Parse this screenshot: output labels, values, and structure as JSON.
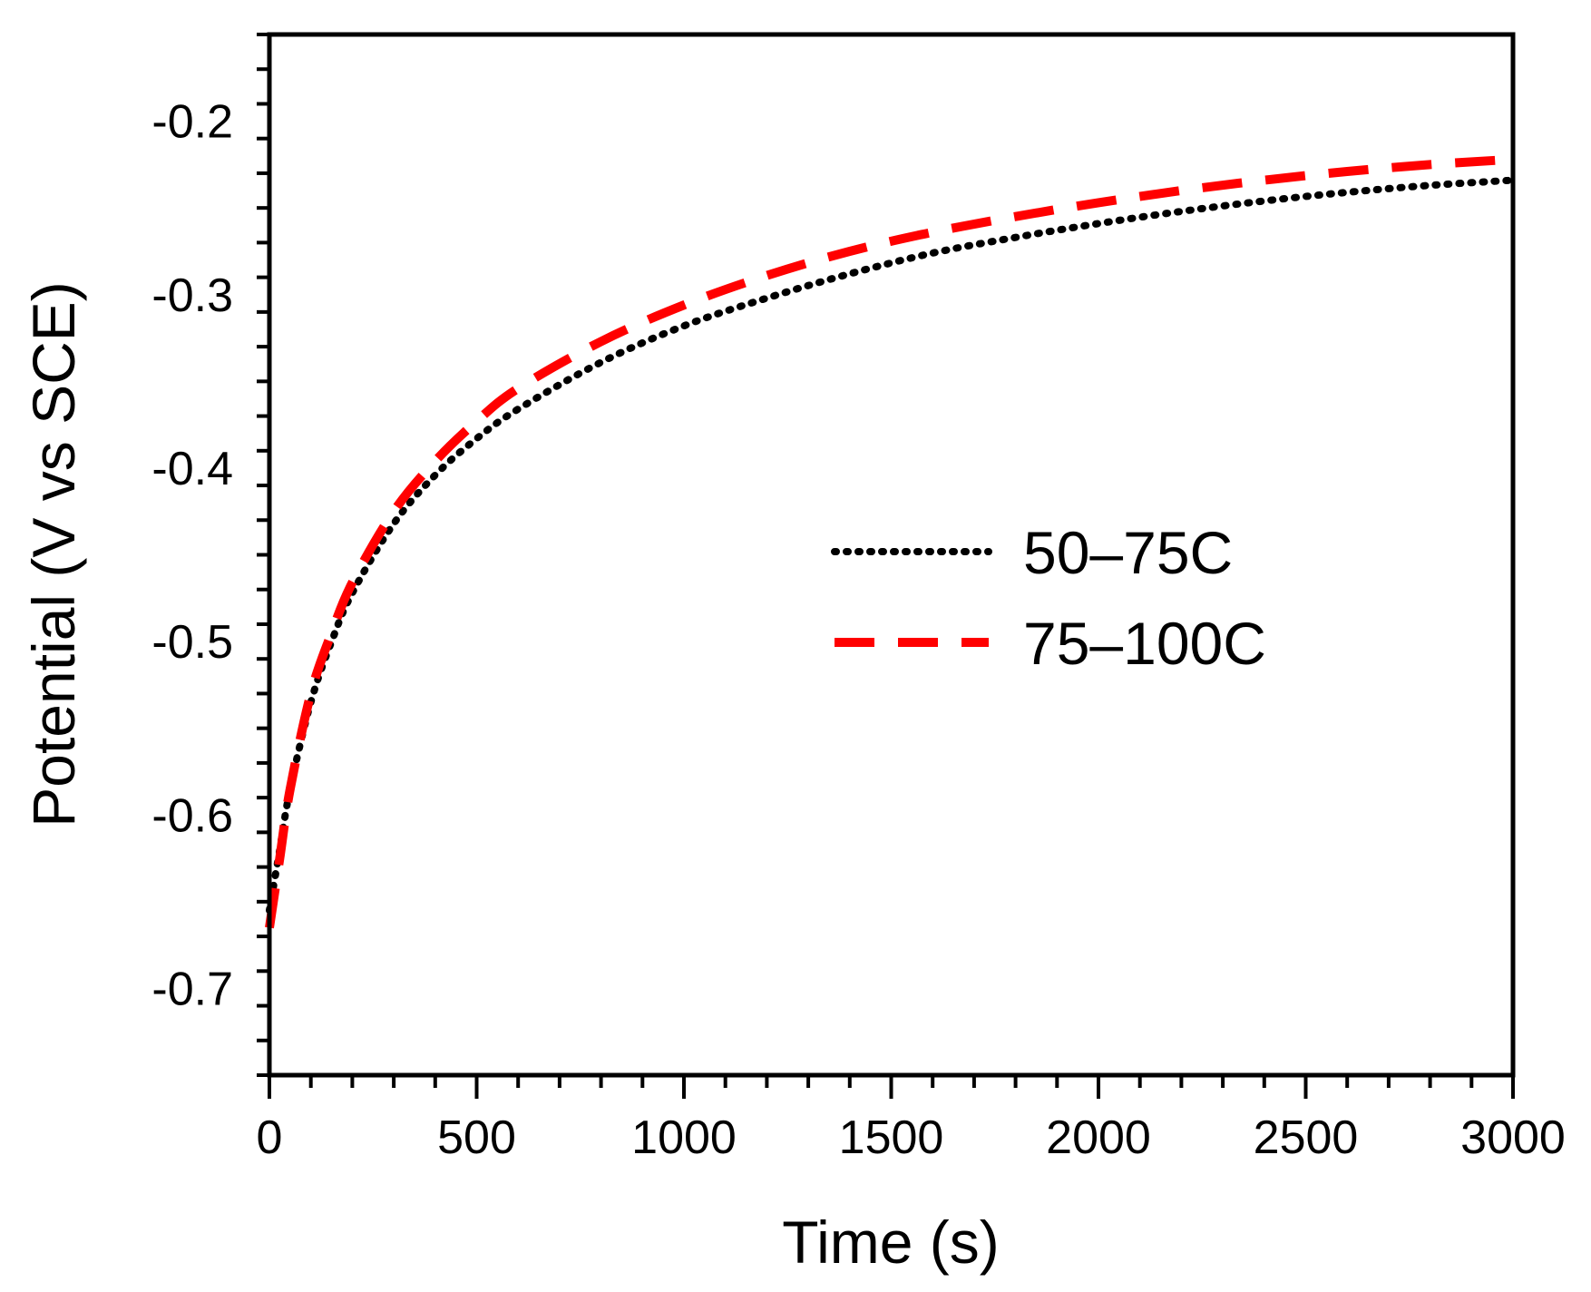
{
  "chart_data": {
    "type": "line",
    "title": "",
    "xlabel": "Time (s)",
    "ylabel": "Potential (V vs SCE)",
    "xlim": [
      0,
      3000
    ],
    "ylim": [
      -0.75,
      -0.15
    ],
    "x_ticks": [
      0,
      500,
      1000,
      1500,
      2000,
      2500,
      3000
    ],
    "x_tick_labels": [
      "0",
      "500",
      "1000",
      "1500",
      "2000",
      "2500",
      "3000"
    ],
    "y_ticks": [
      -0.7,
      -0.6,
      -0.5,
      -0.4,
      -0.3,
      -0.2
    ],
    "y_tick_labels": [
      "-0.7",
      "-0.6",
      "-0.5",
      "-0.4",
      "-0.3",
      "-0.2"
    ],
    "grid": false,
    "legend_position": "center-right",
    "series": [
      {
        "name": "50–75C",
        "color": "#000000",
        "style": "dotted",
        "x": [
          0,
          25,
          50,
          100,
          150,
          200,
          300,
          400,
          500,
          600,
          800,
          1000,
          1200,
          1400,
          1600,
          1800,
          2000,
          2200,
          2400,
          2600,
          2800,
          3000
        ],
        "y": [
          -0.655,
          -0.62,
          -0.585,
          -0.535,
          -0.5,
          -0.472,
          -0.432,
          -0.404,
          -0.383,
          -0.366,
          -0.339,
          -0.318,
          -0.302,
          -0.288,
          -0.276,
          -0.267,
          -0.259,
          -0.252,
          -0.246,
          -0.241,
          -0.237,
          -0.234
        ]
      },
      {
        "name": "75–100C",
        "color": "#ff0000",
        "style": "dashed",
        "x": [
          0,
          25,
          50,
          100,
          150,
          200,
          300,
          400,
          500,
          600,
          800,
          1000,
          1200,
          1400,
          1600,
          1800,
          2000,
          2200,
          2400,
          2600,
          2800,
          3000
        ],
        "y": [
          -0.665,
          -0.625,
          -0.585,
          -0.53,
          -0.495,
          -0.466,
          -0.425,
          -0.396,
          -0.373,
          -0.354,
          -0.327,
          -0.306,
          -0.289,
          -0.275,
          -0.264,
          -0.255,
          -0.247,
          -0.24,
          -0.234,
          -0.229,
          -0.225,
          -0.222
        ]
      }
    ]
  }
}
